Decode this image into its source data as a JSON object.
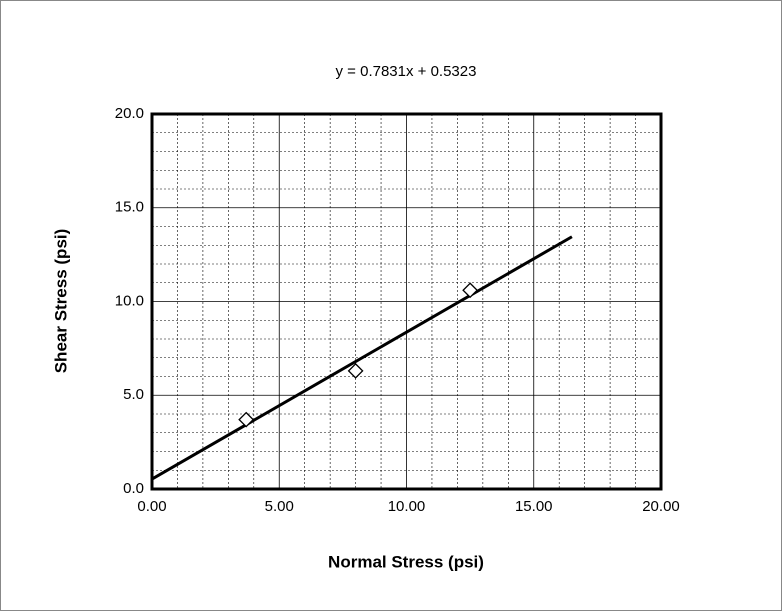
{
  "chart_data": {
    "type": "scatter",
    "annotation": "y = 0.7831x + 0.5323",
    "x_label": "Normal Stress (psi)",
    "y_label": "Shear Stress (psi)",
    "x": [
      3.7,
      8.0,
      12.5
    ],
    "values": [
      3.7,
      6.3,
      10.6
    ],
    "color": "#000000",
    "trendline": {
      "x": [
        0,
        16.5
      ],
      "values": [
        0.5323,
        13.4535
      ],
      "color": "#000000"
    },
    "xlim": [
      0,
      20
    ],
    "ylim": [
      0,
      20
    ],
    "xticks": [
      {
        "value": 0,
        "label": "0.00"
      },
      {
        "value": 5,
        "label": "5.00"
      },
      {
        "value": 10,
        "label": "10.00"
      },
      {
        "value": 15,
        "label": "15.00"
      },
      {
        "value": 20,
        "label": "20.00"
      }
    ],
    "yticks": [
      {
        "value": 0,
        "label": "0.0"
      },
      {
        "value": 5,
        "label": "5.0"
      },
      {
        "value": 10,
        "label": "10.0"
      },
      {
        "value": 15,
        "label": "15.0"
      },
      {
        "value": 20,
        "label": "20.0"
      }
    ],
    "grid": true,
    "minor_grid": true
  }
}
